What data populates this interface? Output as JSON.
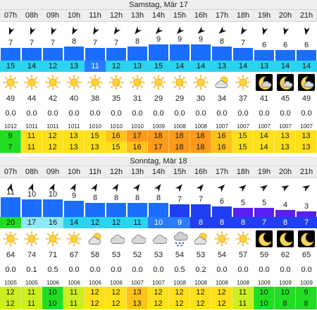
{
  "hours": [
    "07h",
    "08h",
    "09h",
    "10h",
    "11h",
    "12h",
    "13h",
    "14h",
    "15h",
    "16h",
    "17h",
    "18h",
    "19h",
    "20h",
    "21h"
  ],
  "colors": {
    "wind_blue": "#1a6dff",
    "wind_dark_blue": "#1f3ff0",
    "wind_violet": "#5a1ff0",
    "temp_cyan": "#2ad4f0",
    "temp_light": "#8ee8f6",
    "temp_blue": "#2a7cff",
    "temp_dark": "#1f3ff0",
    "t_green": "#22dd22",
    "t_yellow_green": "#ccee22",
    "t_yellow": "#ffe01a",
    "t_gold": "#ffc21a",
    "t_orange": "#ff9a1a"
  },
  "days": [
    {
      "title": "Samstag, Mär 17",
      "wind_dir": [
        200,
        200,
        200,
        205,
        210,
        215,
        220,
        225,
        225,
        230,
        230,
        210,
        195,
        195,
        190
      ],
      "wind": [
        7,
        7,
        7,
        8,
        7,
        7,
        8,
        9,
        9,
        9,
        8,
        7,
        6,
        6,
        6
      ],
      "wind_colors": [
        "wind_blue",
        "wind_blue",
        "wind_blue",
        "wind_blue",
        "wind_blue",
        "wind_blue",
        "wind_blue",
        "wind_blue",
        "wind_blue",
        "wind_blue",
        "wind_blue",
        "wind_blue",
        "wind_blue",
        "wind_blue",
        "wind_blue"
      ],
      "temps": [
        15,
        14,
        12,
        13,
        11,
        12,
        13,
        15,
        14,
        14,
        13,
        14,
        13,
        14,
        14
      ],
      "temp_colors": [
        "temp_cyan",
        "temp_cyan",
        "temp_cyan",
        "temp_cyan",
        "temp_blue",
        "temp_cyan",
        "temp_cyan",
        "temp_cyan",
        "temp_cyan",
        "temp_cyan",
        "temp_cyan",
        "temp_cyan",
        "temp_cyan",
        "temp_cyan",
        "temp_cyan"
      ],
      "icons": [
        "sun-icon",
        "sun-icon",
        "sun-icon",
        "sun-icon",
        "sun-icon",
        "sun-icon",
        "sun-icon",
        "sun-icon",
        "sun-icon",
        "sun-icon",
        "partly-cloudy-icon",
        "sun-icon",
        "moon-cloud-icon",
        "moon-cloud-icon",
        "moon-cloud-icon"
      ],
      "humidity": [
        49,
        44,
        42,
        40,
        38,
        35,
        31,
        29,
        29,
        30,
        34,
        37,
        41,
        45,
        49
      ],
      "precip": [
        "0.0",
        "0.0",
        "0.0",
        "0.0",
        "0.0",
        "0.0",
        "0.0",
        "0.0",
        "0.0",
        "0.0",
        "0.0",
        "0.0",
        "0.0",
        "0.0",
        "0.0"
      ],
      "pressure": [
        1012,
        1011,
        1011,
        1011,
        1010,
        1010,
        1010,
        1009,
        1008,
        1008,
        1007,
        1007,
        1007,
        1007,
        1007
      ],
      "t1": [
        9,
        11,
        12,
        13,
        15,
        16,
        17,
        18,
        18,
        18,
        16,
        15,
        14,
        13,
        13
      ],
      "t1_colors": [
        "t_green",
        "t_yellow",
        "t_yellow",
        "t_yellow",
        "t_yellow",
        "t_gold",
        "t_orange",
        "t_orange",
        "t_orange",
        "t_orange",
        "t_gold",
        "t_yellow",
        "t_yellow",
        "t_yellow",
        "t_yellow"
      ],
      "t2": [
        7,
        11,
        12,
        13,
        13,
        15,
        16,
        17,
        18,
        18,
        16,
        15,
        14,
        13,
        13
      ],
      "t2_colors": [
        "t_green",
        "t_yellow",
        "t_yellow",
        "t_yellow",
        "t_yellow",
        "t_yellow",
        "t_gold",
        "t_orange",
        "t_orange",
        "t_orange",
        "t_gold",
        "t_yellow",
        "t_yellow",
        "t_yellow",
        "t_yellow"
      ]
    },
    {
      "title": "Sonntag, Mär 18",
      "wind_dir": [
        15,
        20,
        25,
        25,
        30,
        30,
        35,
        35,
        40,
        40,
        45,
        50,
        55,
        60,
        60
      ],
      "wind": [
        11,
        10,
        10,
        9,
        8,
        8,
        8,
        8,
        7,
        7,
        6,
        5,
        5,
        4,
        3
      ],
      "wind_colors": [
        "wind_blue",
        "wind_blue",
        "wind_blue",
        "wind_blue",
        "wind_blue",
        "wind_blue",
        "wind_blue",
        "wind_blue",
        "wind_dark_blue",
        "wind_dark_blue",
        "wind_dark_blue",
        "wind_violet",
        "wind_violet",
        "wind_violet",
        "wind_violet"
      ],
      "temps": [
        20,
        17,
        16,
        14,
        12,
        12,
        11,
        10,
        9,
        8,
        8,
        8,
        7,
        8,
        7
      ],
      "temp_colors": [
        "t_green",
        "temp_light",
        "temp_light",
        "temp_cyan",
        "temp_cyan",
        "temp_cyan",
        "temp_cyan",
        "temp_blue",
        "temp_blue",
        "temp_dark",
        "temp_dark",
        "temp_dark",
        "temp_dark",
        "temp_dark",
        "temp_dark"
      ],
      "icons": [
        "sun-icon",
        "sun-icon",
        "sun-icon",
        "sun-icon",
        "partly-cloudy-icon",
        "cloud-icon",
        "cloud-icon",
        "cloud-icon",
        "rain-cloud-icon",
        "partly-cloudy-icon",
        "sun-icon",
        "sun-icon",
        "moon-icon",
        "moon-icon",
        "moon-icon"
      ],
      "humidity": [
        64,
        74,
        71,
        67,
        58,
        53,
        52,
        53,
        54,
        53,
        54,
        57,
        59,
        62,
        65
      ],
      "precip": [
        "0.0",
        "0.1",
        "0.5",
        "0.0",
        "0.0",
        "0.0",
        "0.0",
        "0.0",
        "0.5",
        "0.2",
        "0.0",
        "0.0",
        "0.0",
        "0.0",
        "0.0"
      ],
      "pressure": [
        1005,
        1005,
        1006,
        1006,
        1006,
        1006,
        1007,
        1007,
        1008,
        1008,
        1008,
        1008,
        1009,
        1009,
        1009
      ],
      "t1": [
        12,
        11,
        10,
        11,
        12,
        12,
        13,
        12,
        12,
        12,
        12,
        11,
        10,
        10,
        9
      ],
      "t1_colors": [
        "t_yellow_green",
        "t_yellow_green",
        "t_green",
        "t_yellow_green",
        "t_yellow",
        "t_yellow",
        "t_gold",
        "t_yellow",
        "t_yellow",
        "t_yellow",
        "t_yellow",
        "t_yellow_green",
        "t_green",
        "t_green",
        "t_green"
      ],
      "t2": [
        12,
        11,
        10,
        11,
        12,
        12,
        13,
        12,
        12,
        12,
        12,
        11,
        10,
        8,
        8
      ],
      "t2_colors": [
        "t_yellow_green",
        "t_yellow_green",
        "t_green",
        "t_yellow_green",
        "t_yellow",
        "t_yellow",
        "t_gold",
        "t_yellow",
        "t_yellow",
        "t_yellow",
        "t_yellow",
        "t_yellow_green",
        "t_green",
        "t_green",
        "t_green"
      ]
    }
  ]
}
